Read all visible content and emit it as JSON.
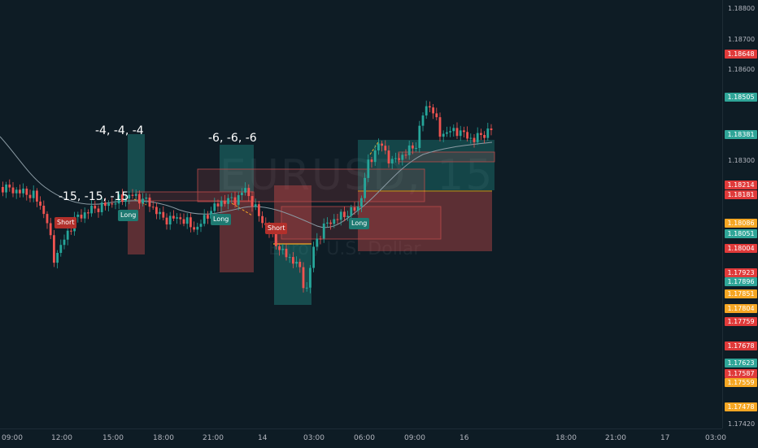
{
  "symbol": {
    "ticker": "EURUSD, 15",
    "description": "Euro / U.S. Dollar"
  },
  "annotations": [
    {
      "text": "-4, -4, -4"
    },
    {
      "text": "-6, -6, -6"
    },
    {
      "text": "-15, -15, -15"
    }
  ],
  "trade_labels": [
    {
      "text": "Short",
      "color": "#b2302b"
    },
    {
      "text": "Long",
      "color": "#1e7a72"
    },
    {
      "text": "Long",
      "color": "#1e7a72"
    },
    {
      "text": "Short",
      "color": "#b2302b"
    },
    {
      "text": "Long",
      "color": "#1e7a72"
    }
  ],
  "price_axis": {
    "ticks": [
      "1.18800",
      "1.18700",
      "1.18600",
      "1.18300",
      "1.17420"
    ],
    "tags": [
      {
        "value": "1.18648",
        "color": "#e03a3a"
      },
      {
        "value": "1.18505",
        "color": "#2fa598"
      },
      {
        "value": "1.18381",
        "color": "#2fa598"
      },
      {
        "value": "1.18214",
        "color": "#e03a3a"
      },
      {
        "value": "1.18181",
        "color": "#e03a3a"
      },
      {
        "value": "1.18086",
        "color": "#f5a623"
      },
      {
        "value": "1.18051",
        "color": "#2fa598"
      },
      {
        "value": "1.18004",
        "color": "#e03a3a"
      },
      {
        "value": "1.17923",
        "color": "#e03a3a"
      },
      {
        "value": "1.17896",
        "color": "#2fa598"
      },
      {
        "value": "1.17851",
        "color": "#f5a623"
      },
      {
        "value": "1.17804",
        "color": "#f5a623"
      },
      {
        "value": "1.17759",
        "color": "#e03a3a"
      },
      {
        "value": "1.17678",
        "color": "#e03a3a"
      },
      {
        "value": "1.17623",
        "color": "#2fa598"
      },
      {
        "value": "1.17587",
        "color": "#e03a3a"
      },
      {
        "value": "1.17559",
        "color": "#f5a623"
      },
      {
        "value": "1.17478",
        "color": "#f5a623"
      }
    ]
  },
  "time_axis": {
    "ticks": [
      "09:00",
      "12:00",
      "15:00",
      "18:00",
      "21:00",
      "14",
      "03:00",
      "06:00",
      "09:00",
      "16",
      "18:00",
      "21:00",
      "17",
      "03:00"
    ]
  },
  "colors": {
    "up": "#26a69a",
    "down": "#ef5350",
    "background": "#0e1c25"
  }
}
